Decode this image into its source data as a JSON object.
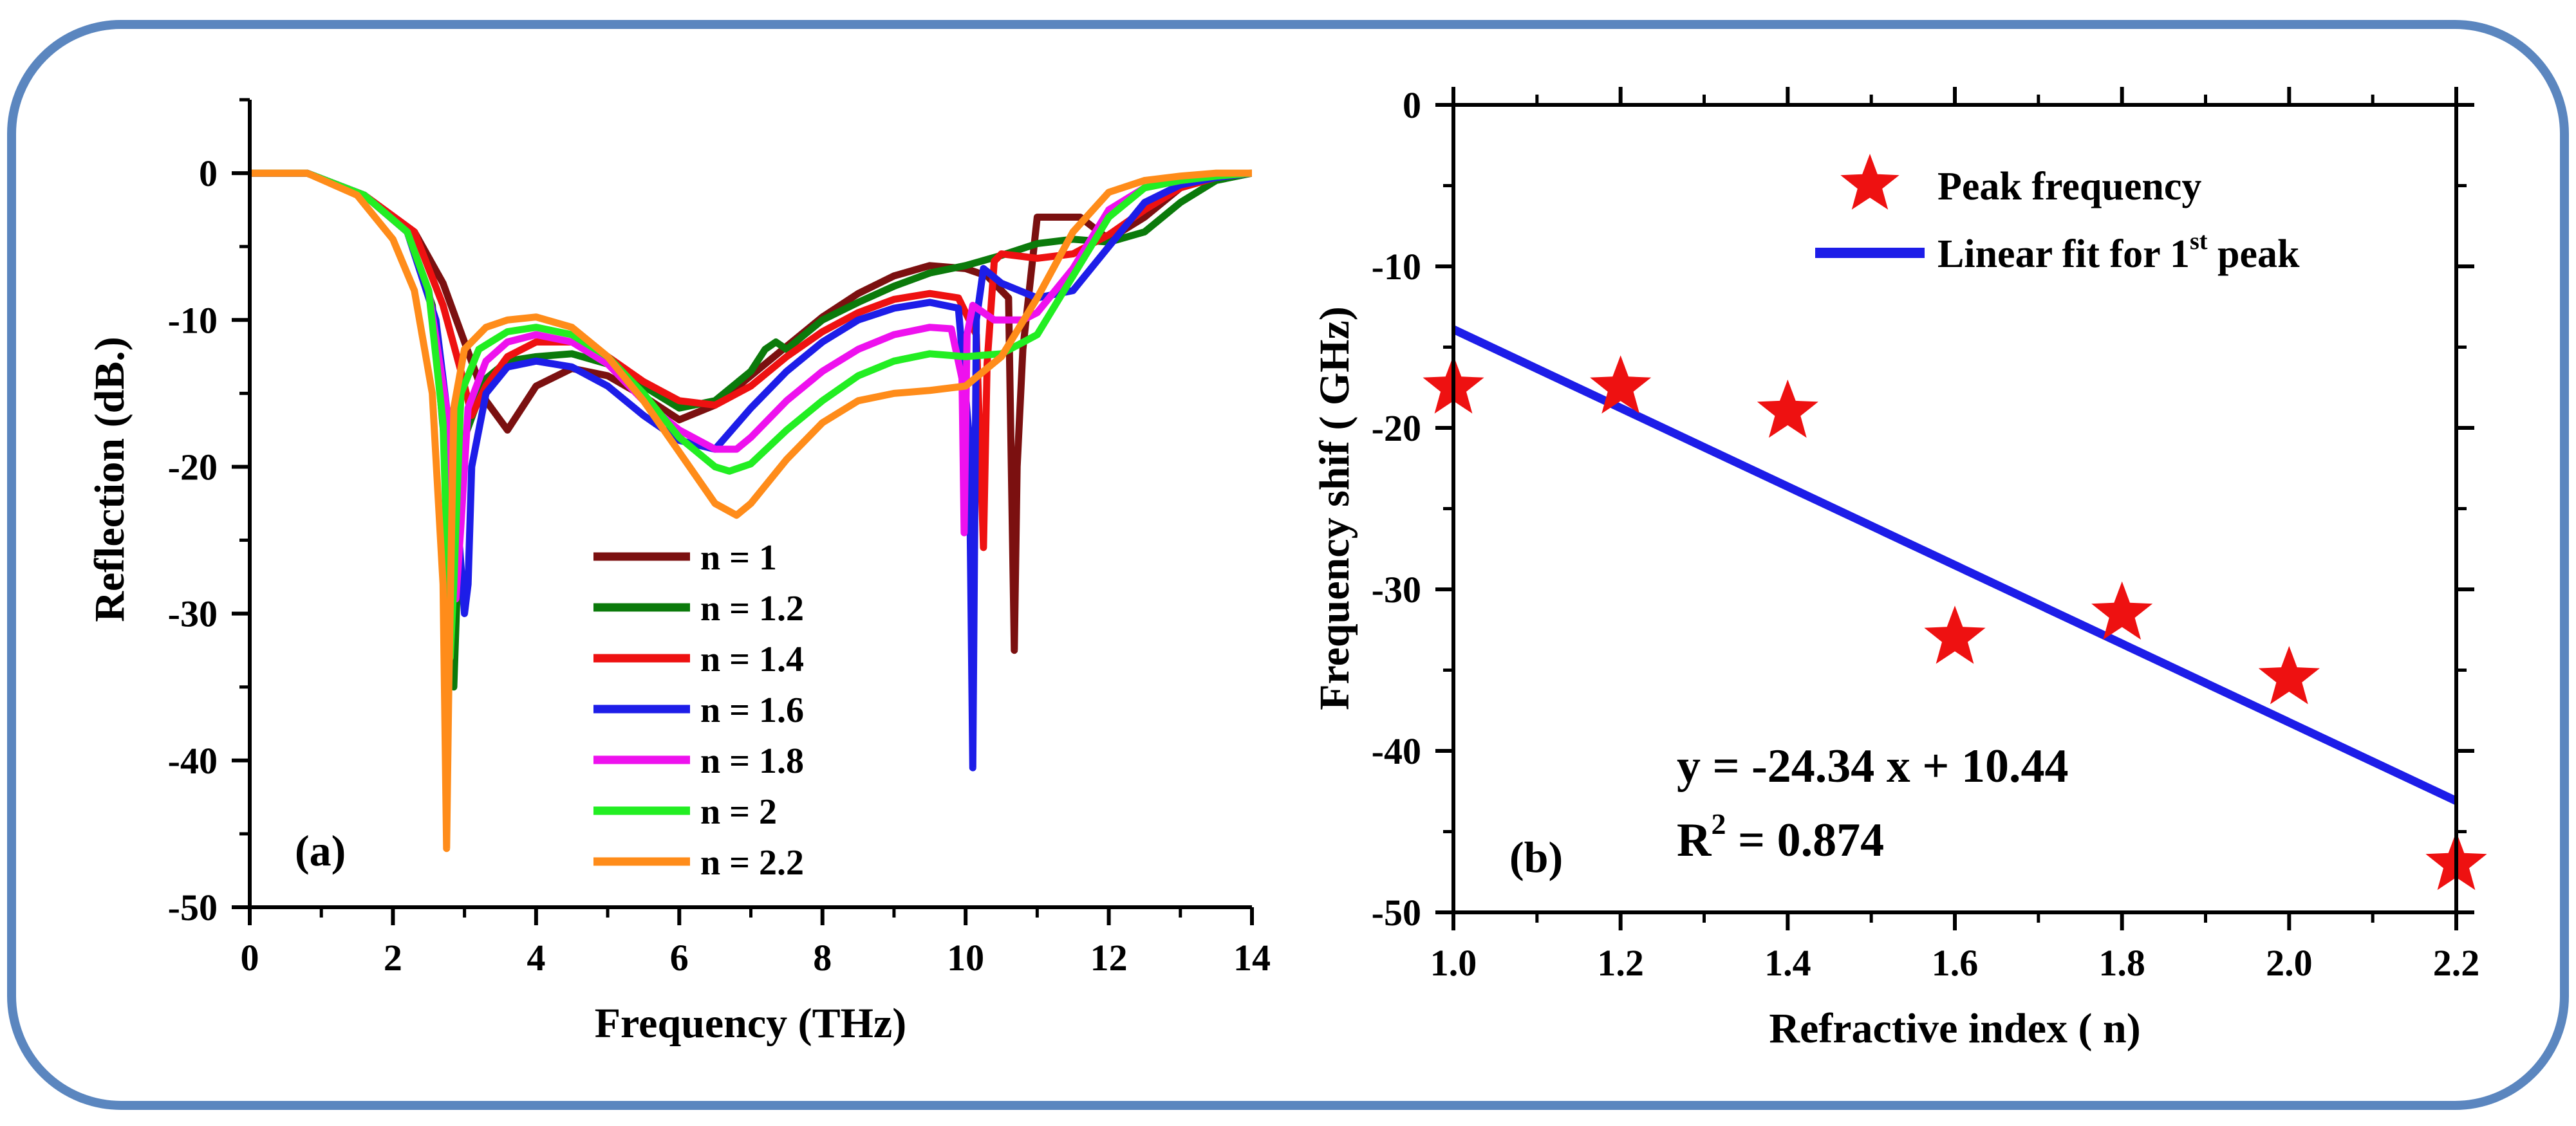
{
  "chart_data": [
    {
      "panel_label": "(a)",
      "type": "line",
      "xlabel": "Frequency (THz)",
      "ylabel": "Reflection (dB.)",
      "xlim": [
        0,
        14
      ],
      "ylim": [
        -50,
        5
      ],
      "xticks": [
        0,
        2,
        4,
        6,
        8,
        10,
        12,
        14
      ],
      "yticks": [
        0,
        -10,
        -20,
        -30,
        -40,
        -50
      ],
      "series": [
        {
          "name": "n = 1",
          "color": "#7b1010",
          "x": [
            0,
            0.8,
            1.6,
            2.3,
            2.7,
            3.0,
            3.3,
            3.6,
            4.0,
            4.5,
            5.0,
            5.5,
            6.0,
            6.5,
            7.0,
            7.5,
            8.0,
            8.5,
            9.0,
            9.5,
            10.0,
            10.3,
            10.6,
            10.68,
            10.72,
            10.8,
            11.0,
            11.3,
            11.6,
            12.0,
            12.5,
            13.0,
            13.5,
            14.0
          ],
          "y": [
            0,
            0,
            -1.5,
            -4,
            -7.5,
            -11.5,
            -15.5,
            -17.5,
            -14.5,
            -13.3,
            -13.8,
            -15.2,
            -16.8,
            -15.8,
            -13.8,
            -11.8,
            -9.8,
            -8.2,
            -7,
            -6.3,
            -6.5,
            -7,
            -8.5,
            -32.5,
            -20,
            -12,
            -3,
            -3,
            -3,
            -4.5,
            -3,
            -1,
            -0.3,
            0
          ]
        },
        {
          "name": "n = 1.2",
          "color": "#0b7a0b",
          "x": [
            0,
            0.8,
            1.6,
            2.2,
            2.55,
            2.75,
            2.85,
            2.9,
            3.0,
            3.3,
            3.6,
            4.0,
            4.5,
            5.0,
            5.5,
            6.0,
            6.5,
            7.0,
            7.2,
            7.35,
            7.5,
            8.0,
            8.5,
            9.0,
            9.5,
            10.0,
            10.5,
            11.0,
            11.5,
            12.0,
            12.5,
            13.0,
            13.5,
            14.0
          ],
          "y": [
            0,
            0,
            -1.5,
            -4,
            -9,
            -20,
            -35,
            -28,
            -18,
            -14,
            -12.8,
            -12.5,
            -12.3,
            -13,
            -14.5,
            -16,
            -15.5,
            -13.5,
            -12,
            -11.5,
            -12,
            -10,
            -8.8,
            -7.7,
            -6.8,
            -6.3,
            -5.6,
            -4.8,
            -4.5,
            -4.7,
            -4,
            -2,
            -0.5,
            0
          ]
        },
        {
          "name": "n = 1.4",
          "color": "#ee1111",
          "x": [
            0,
            0.8,
            1.6,
            2.3,
            2.7,
            2.95,
            3.1,
            3.3,
            3.6,
            4.0,
            4.5,
            5.0,
            5.5,
            6.0,
            6.5,
            7.0,
            7.5,
            8.0,
            8.5,
            9.0,
            9.5,
            9.9,
            10.15,
            10.25,
            10.3,
            10.4,
            10.5,
            11.0,
            11.5,
            12.0,
            12.5,
            13.0,
            13.5,
            14.0
          ],
          "y": [
            0,
            0,
            -1.5,
            -4,
            -9,
            -13.5,
            -16.5,
            -14.5,
            -12.5,
            -11.5,
            -11.5,
            -12.5,
            -14.2,
            -15.5,
            -15.8,
            -14.5,
            -12.5,
            -10.8,
            -9.5,
            -8.6,
            -8.2,
            -8.5,
            -11,
            -25.5,
            -13,
            -6,
            -5.5,
            -5.8,
            -5.5,
            -4.2,
            -2.5,
            -1,
            -0.3,
            0
          ]
        },
        {
          "name": "n = 1.6",
          "color": "#1d1de8",
          "x": [
            0,
            0.8,
            1.6,
            2.2,
            2.6,
            2.85,
            3.0,
            3.05,
            3.1,
            3.3,
            3.6,
            4.0,
            4.5,
            5.0,
            5.5,
            6.0,
            6.5,
            7.0,
            7.5,
            8.0,
            8.5,
            9.0,
            9.5,
            9.9,
            10.05,
            10.1,
            10.15,
            10.25,
            10.5,
            11.0,
            11.5,
            12.0,
            12.5,
            13.0,
            13.5,
            14.0
          ],
          "y": [
            0,
            0,
            -1.5,
            -4,
            -10,
            -20,
            -30,
            -28,
            -20,
            -15,
            -13.2,
            -12.8,
            -13.2,
            -14.5,
            -16.5,
            -18.2,
            -18.8,
            -16,
            -13.5,
            -11.5,
            -10,
            -9.2,
            -8.8,
            -9.2,
            -18,
            -40.5,
            -10,
            -6.5,
            -7.5,
            -8.5,
            -8,
            -5,
            -2,
            -0.8,
            -0.3,
            0
          ]
        },
        {
          "name": "n = 1.8",
          "color": "#ee11ee",
          "x": [
            0,
            0.8,
            1.6,
            2.2,
            2.5,
            2.75,
            2.88,
            2.95,
            3.05,
            3.3,
            3.6,
            4.0,
            4.5,
            5.0,
            5.5,
            6.0,
            6.5,
            6.8,
            7.0,
            7.5,
            8.0,
            8.5,
            9.0,
            9.5,
            9.8,
            9.95,
            9.98,
            10.02,
            10.1,
            10.4,
            10.8,
            11.0,
            11.5,
            12.0,
            12.5,
            13.0,
            13.5,
            14.0
          ],
          "y": [
            0,
            0,
            -1.5,
            -4,
            -8,
            -16,
            -29,
            -24,
            -16,
            -12.8,
            -11.5,
            -11,
            -11.5,
            -13,
            -15.5,
            -17.5,
            -18.8,
            -18.8,
            -18,
            -15.5,
            -13.5,
            -12,
            -11,
            -10.5,
            -10.6,
            -14,
            -24.5,
            -11,
            -9,
            -10,
            -10,
            -9.5,
            -6.5,
            -2.5,
            -1,
            -0.5,
            -0.2,
            0
          ]
        },
        {
          "name": "n = 2",
          "color": "#22ee22",
          "x": [
            0,
            0.8,
            1.6,
            2.2,
            2.5,
            2.7,
            2.8,
            2.85,
            2.95,
            3.2,
            3.6,
            4.0,
            4.5,
            5.0,
            5.5,
            6.0,
            6.5,
            6.7,
            7.0,
            7.5,
            8.0,
            8.5,
            9.0,
            9.5,
            10.0,
            10.5,
            11.0,
            11.5,
            12.0,
            12.5,
            13.0,
            13.5,
            14.0
          ],
          "y": [
            0,
            0,
            -1.5,
            -4,
            -8,
            -17,
            -33,
            -28,
            -15,
            -12,
            -10.8,
            -10.5,
            -11,
            -12.5,
            -15,
            -18,
            -20,
            -20.3,
            -19.8,
            -17.5,
            -15.5,
            -13.8,
            -12.8,
            -12.3,
            -12.5,
            -12.3,
            -11,
            -7,
            -3,
            -1,
            -0.5,
            -0.2,
            0
          ]
        },
        {
          "name": "n = 2.2",
          "color": "#ff8c1a",
          "x": [
            0,
            0.8,
            1.5,
            2.0,
            2.3,
            2.55,
            2.7,
            2.75,
            2.78,
            2.85,
            3.0,
            3.3,
            3.6,
            4.0,
            4.5,
            5.0,
            5.5,
            6.0,
            6.5,
            6.8,
            7.0,
            7.5,
            8.0,
            8.5,
            9.0,
            9.5,
            10.0,
            10.5,
            11.0,
            11.5,
            12.0,
            12.5,
            13.0,
            13.5,
            14.0
          ],
          "y": [
            0,
            0,
            -1.5,
            -4.5,
            -8,
            -15,
            -28,
            -46,
            -35,
            -16,
            -12,
            -10.5,
            -10,
            -9.8,
            -10.5,
            -12.5,
            -15.5,
            -19,
            -22.5,
            -23.3,
            -22.5,
            -19.5,
            -17,
            -15.5,
            -15,
            -14.8,
            -14.5,
            -12.5,
            -8.5,
            -4,
            -1.3,
            -0.5,
            -0.2,
            0,
            0
          ]
        }
      ],
      "legend": {
        "placement": "center",
        "entries": [
          "n = 1",
          "n = 1.2",
          "n = 1.4",
          "n = 1.6",
          "n = 1.8",
          "n = 2",
          "n = 2.2"
        ]
      }
    },
    {
      "panel_label": "(b)",
      "type": "scatter",
      "xlabel": "Refractive index ( n)",
      "ylabel": "Frequency shif ( GHz)",
      "xlim": [
        1.0,
        2.2
      ],
      "ylim": [
        -50,
        0
      ],
      "xticks": [
        1.0,
        1.2,
        1.4,
        1.6,
        1.8,
        2.0,
        2.2
      ],
      "xtick_labels": [
        "1.0",
        "1.2",
        "1.4",
        "1.6",
        "1.8",
        "2.0",
        "2.2"
      ],
      "yticks": [
        0,
        -10,
        -20,
        -30,
        -40,
        -50
      ],
      "points": {
        "name": "Peak frequency",
        "color": "#ee1111",
        "x": [
          1.0,
          1.2,
          1.4,
          1.6,
          1.8,
          2.0,
          2.2
        ],
        "y": [
          -17.5,
          -17.5,
          -19,
          -33,
          -31.5,
          -35.5,
          -47
        ]
      },
      "fit": {
        "name_prefix": "Linear fit for 1",
        "name_superscript": "st",
        "name_suffix": " peak",
        "color": "#1d1de8",
        "slope": -24.34,
        "intercept": 10.44,
        "x": [
          1.0,
          2.2
        ],
        "y": [
          -13.9,
          -43.1
        ]
      },
      "annotations": {
        "equation": "y = -24.34 x + 10.44",
        "r2_prefix": "R",
        "r2_superscript": "2",
        "r2_suffix": " = 0.874"
      },
      "legend": {
        "placement": "top-right"
      }
    }
  ]
}
